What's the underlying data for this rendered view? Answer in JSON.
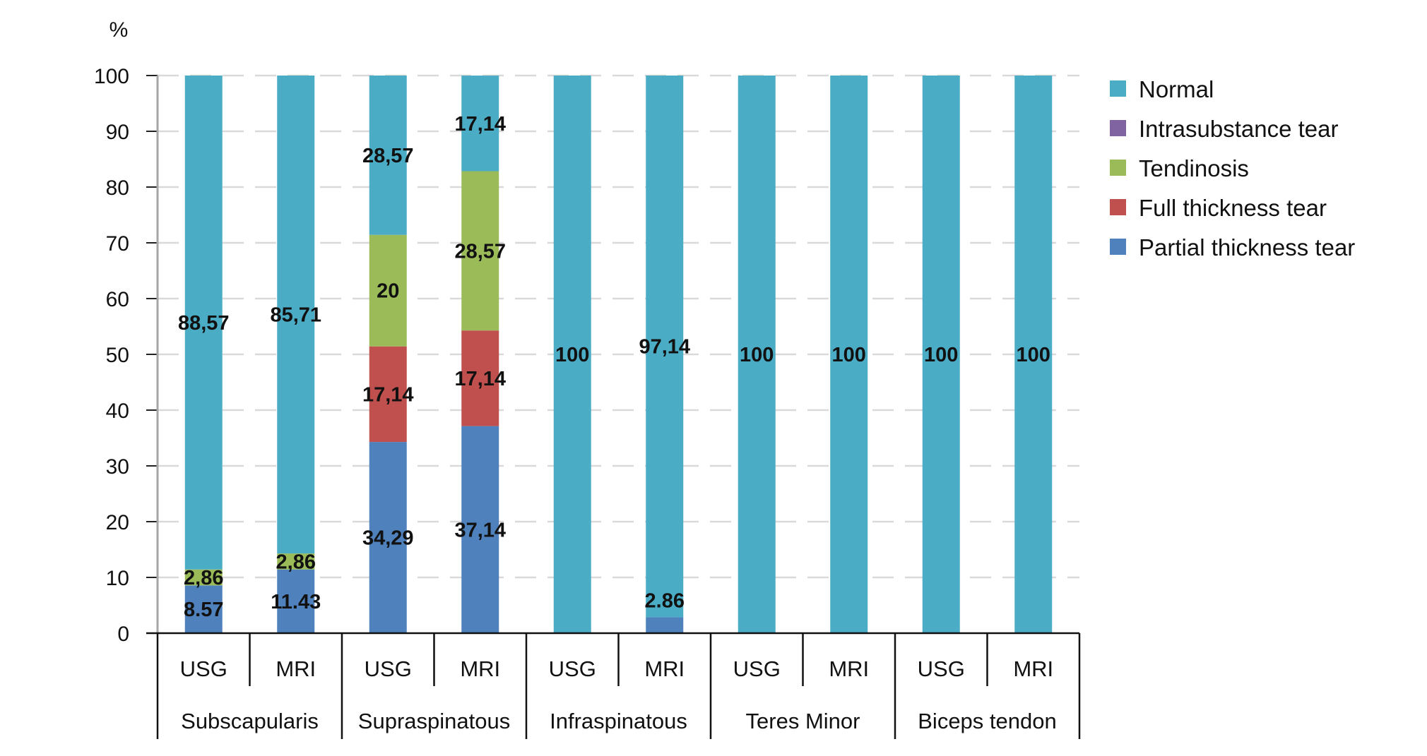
{
  "chart_data": {
    "type": "bar",
    "stacked": true,
    "ylabel": "%",
    "ylim": [
      0,
      100
    ],
    "yticks": [
      0,
      10,
      20,
      30,
      40,
      50,
      60,
      70,
      80,
      90,
      100
    ],
    "grid": true,
    "legend_position": "right",
    "groups": [
      "Subscapularis",
      "Supraspinatous",
      "Infraspinatous",
      "Teres Minor",
      "Biceps tendon"
    ],
    "categories": [
      "USG",
      "MRI",
      "USG",
      "MRI",
      "USG",
      "MRI",
      "USG",
      "MRI",
      "USG",
      "MRI"
    ],
    "series": [
      {
        "name": "Partial thickness tear",
        "color": "#4f81bd",
        "values": [
          8.57,
          11.43,
          34.29,
          37.14,
          0,
          2.86,
          0,
          0,
          0,
          0
        ],
        "labels": [
          "8.57",
          "11.43",
          "34,29",
          "37,14",
          "",
          "2.86",
          "",
          "",
          "",
          ""
        ]
      },
      {
        "name": "Full thickness tear",
        "color": "#c0504d",
        "values": [
          0,
          0,
          17.14,
          17.14,
          0,
          0,
          0,
          0,
          0,
          0
        ],
        "labels": [
          "",
          "",
          "17,14",
          "17,14",
          "",
          "",
          "",
          "",
          "",
          ""
        ]
      },
      {
        "name": "Tendinosis",
        "color": "#9bbb59",
        "values": [
          2.86,
          2.86,
          20,
          28.57,
          0,
          0,
          0,
          0,
          0,
          0
        ],
        "labels": [
          "2,86",
          "2,86",
          "20",
          "28,57",
          "",
          "",
          "",
          "",
          "",
          ""
        ]
      },
      {
        "name": "Intrasubstance tear",
        "color": "#8064a2",
        "values": [
          0,
          0,
          0,
          0,
          0,
          0,
          0,
          0,
          0,
          0
        ],
        "labels": [
          "",
          "",
          "",
          "",
          "",
          "",
          "",
          "",
          "",
          ""
        ]
      },
      {
        "name": "Normal",
        "color": "#4bacc6",
        "values": [
          88.57,
          85.71,
          28.57,
          17.14,
          100,
          97.14,
          100,
          100,
          100,
          100
        ],
        "labels": [
          "88,57",
          "85,71",
          "28,57",
          "17,14",
          "100",
          "97,14",
          "100",
          "100",
          "100",
          "100"
        ]
      }
    ],
    "legend_order": [
      "Normal",
      "Intrasubstance tear",
      "Tendinosis",
      "Full thickness tear",
      "Partial thickness tear"
    ]
  }
}
